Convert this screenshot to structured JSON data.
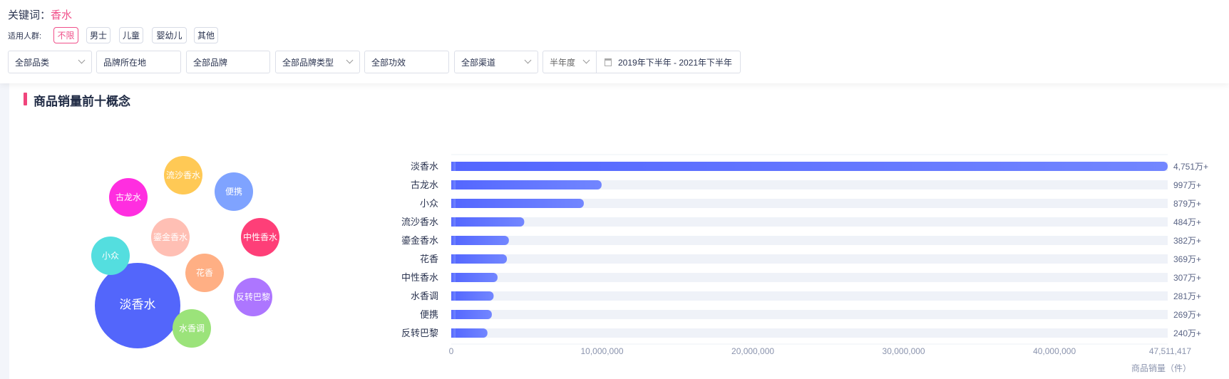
{
  "header": {
    "keyword_label": "关键词：",
    "keyword_value": "香水",
    "crowd_label": "适用人群:",
    "crowd_options": [
      {
        "label": "不限",
        "active": true
      },
      {
        "label": "男士"
      },
      {
        "label": "儿童"
      },
      {
        "label": "婴幼儿"
      },
      {
        "label": "其他"
      }
    ],
    "filters": [
      {
        "label": "全部品类",
        "dropdown": true
      },
      {
        "label": "品牌所在地"
      },
      {
        "label": "全部品牌"
      },
      {
        "label": "全部品牌类型",
        "dropdown": true
      },
      {
        "label": "全部功效"
      },
      {
        "label": "全部渠道",
        "dropdown": true
      },
      {
        "label": "半年度",
        "dropdown": true
      }
    ],
    "date_range": "2019年下半年 - 2021年下半年",
    "date_icon": "calendar-icon"
  },
  "section": {
    "title": "商品销量前十概念"
  },
  "colors": {
    "accent": "#f0508a",
    "bar": "#5566ff",
    "track": "#eff2f8"
  },
  "chart_data": [
    {
      "type": "bubble",
      "items": [
        {
          "name": "淡香水",
          "color": "#5366fb"
        },
        {
          "name": "古龙水",
          "color": "#ff2ee0"
        },
        {
          "name": "流沙香水",
          "color": "#ffc955"
        },
        {
          "name": "便携",
          "color": "#7fa3ff"
        },
        {
          "name": "鎏金香水",
          "color": "#ffbfb4"
        },
        {
          "name": "中性香水",
          "color": "#fe3f78"
        },
        {
          "name": "小众",
          "color": "#54dedf"
        },
        {
          "name": "花香",
          "color": "#ffaf84"
        },
        {
          "name": "反转巴黎",
          "color": "#ad76ff"
        },
        {
          "name": "水香调",
          "color": "#9be37a"
        }
      ]
    },
    {
      "type": "bar",
      "orientation": "horizontal",
      "categories": [
        "淡香水",
        "古龙水",
        "小众",
        "流沙香水",
        "鎏金香水",
        "花香",
        "中性香水",
        "水香调",
        "便携",
        "反转巴黎"
      ],
      "values": [
        47511417,
        9970000,
        8790000,
        4840000,
        3820000,
        3690000,
        3070000,
        2810000,
        2690000,
        2400000
      ],
      "value_labels": [
        "4,751万+",
        "997万+",
        "879万+",
        "484万+",
        "382万+",
        "369万+",
        "307万+",
        "281万+",
        "269万+",
        "240万+"
      ],
      "xlim": [
        0,
        47511417
      ],
      "xticks": [
        "0",
        "10,000,000",
        "20,000,000",
        "30,000,000",
        "40,000,000",
        "47,511,417"
      ],
      "xtick_values": [
        0,
        10000000,
        20000000,
        30000000,
        40000000,
        47511417
      ],
      "xlabel": "商品销量（件）"
    }
  ]
}
